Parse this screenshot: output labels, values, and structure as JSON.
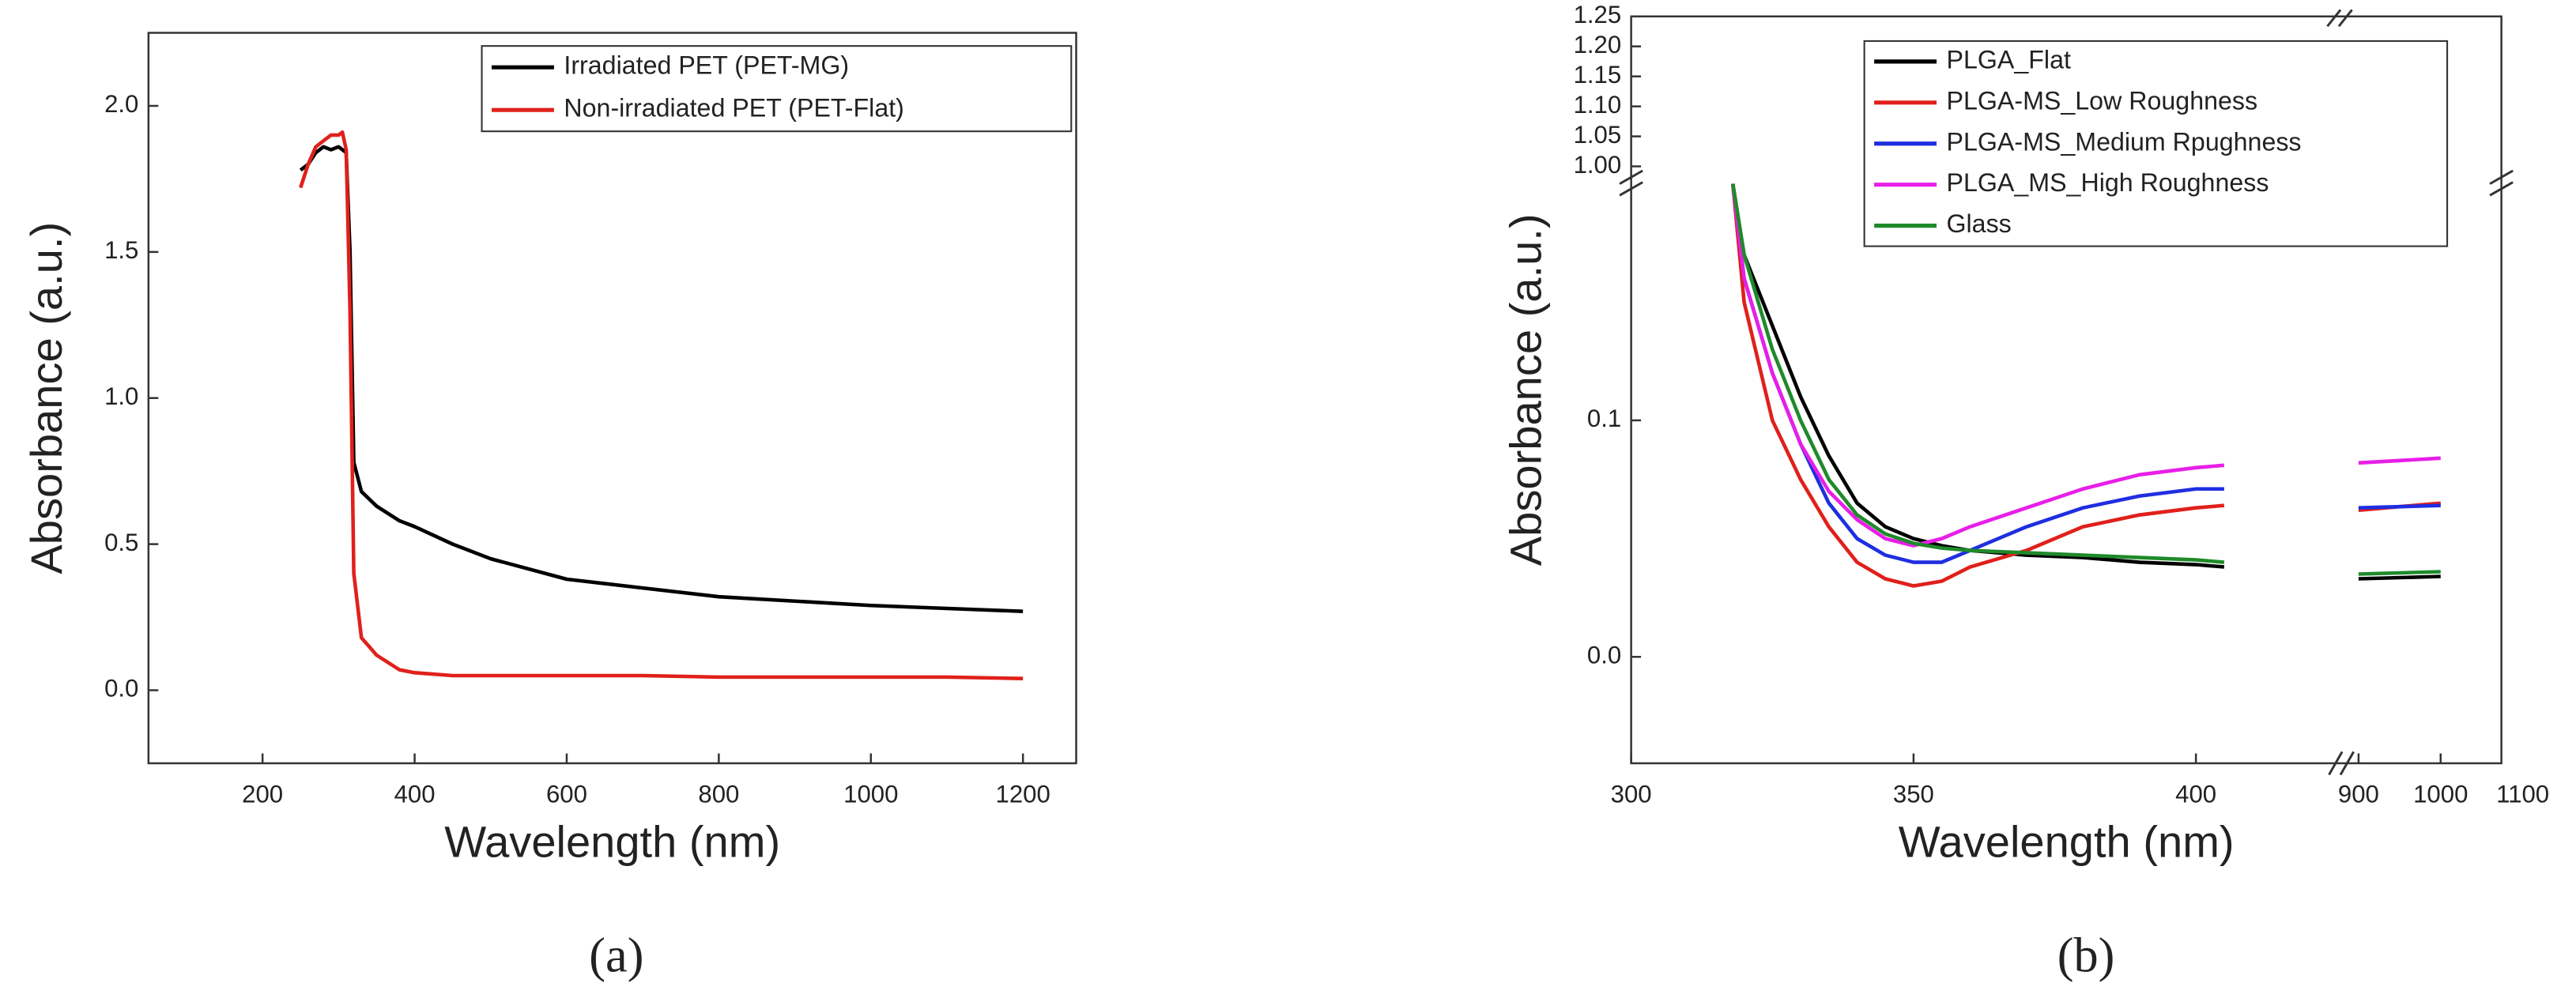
{
  "chart_data": [
    {
      "type": "line",
      "x_label": "Wavelength (nm)",
      "y_label": "Absorbance (a.u.)",
      "caption": "(a)",
      "xlim": [
        50,
        1270
      ],
      "xticks": [
        200,
        400,
        600,
        800,
        1000,
        1200
      ],
      "ylim": [
        -0.25,
        2.25
      ],
      "yticks": [
        {
          "value": 0,
          "label": "0.0"
        },
        {
          "value": 0.5,
          "label": "0.5"
        },
        {
          "value": 1,
          "label": "1.0"
        },
        {
          "value": 1.5,
          "label": "1.5"
        },
        {
          "value": 2,
          "label": "2.0"
        }
      ],
      "x": [
        250,
        260,
        270,
        280,
        290,
        300,
        305,
        310,
        315,
        320,
        330,
        350,
        380,
        400,
        450,
        500,
        600,
        700,
        800,
        900,
        1000,
        1100,
        1200
      ],
      "series": [
        {
          "name": "Irradiated PET (PET-MG)",
          "color": "#000000",
          "values": [
            1.78,
            1.8,
            1.84,
            1.86,
            1.85,
            1.86,
            1.85,
            1.84,
            1.5,
            0.78,
            0.68,
            0.63,
            0.58,
            0.56,
            0.5,
            0.45,
            0.38,
            0.35,
            0.32,
            0.305,
            0.29,
            0.28,
            0.27
          ]
        },
        {
          "name": "Non-irradiated PET (PET-Flat)",
          "color": "#e0201b",
          "values": [
            1.72,
            1.8,
            1.86,
            1.88,
            1.9,
            1.9,
            1.91,
            1.85,
            1.3,
            0.4,
            0.18,
            0.12,
            0.07,
            0.06,
            0.05,
            0.05,
            0.05,
            0.05,
            0.045,
            0.045,
            0.045,
            0.045,
            0.04
          ]
        }
      ]
    },
    {
      "type": "line",
      "x_label": "Wavelength (nm)",
      "y_label": "Absorbance (a.u.)",
      "caption": "(b)",
      "x_segments": [
        {
          "lim": [
            300,
            425.6
          ],
          "ticks": [
            300,
            350,
            400
          ]
        },
        {
          "lim": [
            888,
            1074
          ],
          "ticks": [
            900,
            1000,
            1100
          ]
        }
      ],
      "y_segments": [
        {
          "lim": [
            -0.045,
            0.2
          ],
          "ticks": [
            {
              "value": 0,
              "label": "0.0"
            },
            {
              "value": 0.1,
              "label": "0.1"
            }
          ]
        },
        {
          "lim": [
            0.99,
            1.25
          ],
          "ticks": [
            {
              "value": 1,
              "label": "1.00"
            },
            {
              "value": 1.05,
              "label": "1.05"
            },
            {
              "value": 1.1,
              "label": "1.10"
            },
            {
              "value": 1.15,
              "label": "1.15"
            },
            {
              "value": 1.2,
              "label": "1.20"
            },
            {
              "value": 1.25,
              "label": "1.25"
            }
          ]
        }
      ],
      "x": [
        318,
        320,
        325,
        330,
        335,
        340,
        345,
        350,
        355,
        360,
        370,
        380,
        390,
        400,
        405,
        900,
        1000
      ],
      "series": [
        {
          "name": "PLGA_Flat",
          "color": "#000000",
          "values": [
            0.2,
            0.17,
            0.14,
            0.11,
            0.085,
            0.065,
            0.055,
            0.05,
            0.047,
            0.045,
            0.043,
            0.042,
            0.04,
            0.039,
            0.038,
            0.033,
            0.034
          ]
        },
        {
          "name": "PLGA-MS_Low Roughness",
          "color": "#e0201b",
          "values": [
            0.2,
            0.15,
            0.1,
            0.075,
            0.055,
            0.04,
            0.033,
            0.03,
            0.032,
            0.038,
            0.045,
            0.055,
            0.06,
            0.063,
            0.064,
            0.062,
            0.065
          ]
        },
        {
          "name": "PLGA-MS_Medium Rpughness",
          "color": "#1f2ee0",
          "values": [
            0.2,
            0.16,
            0.12,
            0.09,
            0.065,
            0.05,
            0.043,
            0.04,
            0.04,
            0.045,
            0.055,
            0.063,
            0.068,
            0.071,
            0.071,
            0.063,
            0.064
          ]
        },
        {
          "name": "PLGA_MS_High Roughness",
          "color": "#e81ee8",
          "values": [
            0.2,
            0.16,
            0.12,
            0.09,
            0.07,
            0.058,
            0.05,
            0.047,
            0.05,
            0.055,
            0.063,
            0.071,
            0.077,
            0.08,
            0.081,
            0.082,
            0.084
          ]
        },
        {
          "name": "Glass",
          "color": "#1f8a2a",
          "values": [
            0.2,
            0.17,
            0.13,
            0.1,
            0.075,
            0.06,
            0.052,
            0.048,
            0.046,
            0.045,
            0.044,
            0.043,
            0.042,
            0.041,
            0.04,
            0.035,
            0.036
          ]
        }
      ]
    }
  ]
}
